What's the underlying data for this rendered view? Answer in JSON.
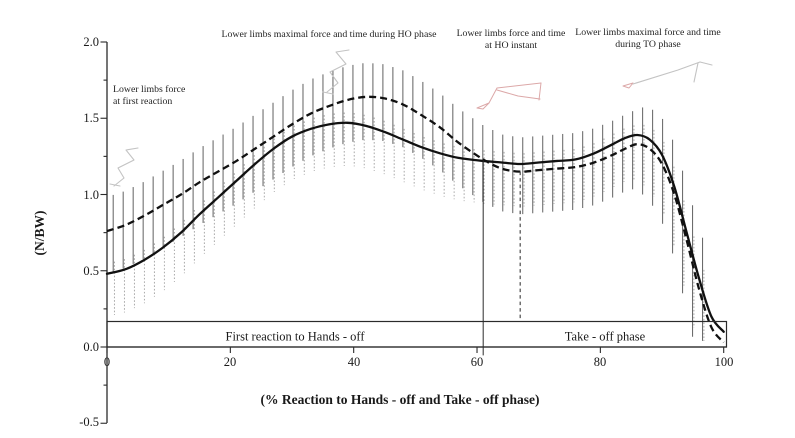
{
  "chart_data": {
    "type": "line",
    "title": "",
    "xlabel": "(% Reaction to Hands - off  and  Take - off phase)",
    "ylabel": "(N/BW)",
    "xlim": [
      0,
      100
    ],
    "ylim": [
      -0.5,
      2.0
    ],
    "grid": false,
    "x_ticks": [
      0,
      20,
      40,
      60,
      80,
      100
    ],
    "x_tick_labels": [
      "0",
      "20",
      "40",
      "60",
      "80",
      "100"
    ],
    "y_ticks": [
      2.0,
      1.5,
      1.0,
      0.5,
      0.0,
      -0.5
    ],
    "y_tick_labels": [
      "2.0",
      "1.5",
      "1.0",
      "0.5",
      "0.0",
      "-0.5"
    ],
    "y_minor_ticks": [
      1.75,
      1.25,
      0.75,
      0.25,
      -0.25
    ],
    "series": [
      {
        "name": "lower-limbs-force-mean-solid",
        "style": "solid",
        "points": [
          [
            0,
            0.48
          ],
          [
            3,
            0.51
          ],
          [
            6,
            0.57
          ],
          [
            9,
            0.65
          ],
          [
            12,
            0.75
          ],
          [
            15,
            0.87
          ],
          [
            18,
            0.98
          ],
          [
            21,
            1.09
          ],
          [
            24,
            1.2
          ],
          [
            27,
            1.3
          ],
          [
            30,
            1.38
          ],
          [
            33,
            1.43
          ],
          [
            36,
            1.46
          ],
          [
            39,
            1.47
          ],
          [
            42,
            1.45
          ],
          [
            45,
            1.41
          ],
          [
            48,
            1.36
          ],
          [
            51,
            1.31
          ],
          [
            54,
            1.27
          ],
          [
            57,
            1.24
          ],
          [
            61,
            1.22
          ],
          [
            64,
            1.21
          ],
          [
            67,
            1.2
          ],
          [
            70,
            1.21
          ],
          [
            73,
            1.22
          ],
          [
            76,
            1.23
          ],
          [
            79,
            1.27
          ],
          [
            82,
            1.33
          ],
          [
            84,
            1.37
          ],
          [
            86,
            1.39
          ],
          [
            88,
            1.36
          ],
          [
            90,
            1.26
          ],
          [
            92,
            1.05
          ],
          [
            94,
            0.75
          ],
          [
            96,
            0.45
          ],
          [
            98,
            0.2
          ],
          [
            100,
            0.1
          ]
        ]
      },
      {
        "name": "lower-limbs-force-mean-dashed",
        "style": "dashed",
        "points": [
          [
            0,
            0.76
          ],
          [
            3,
            0.8
          ],
          [
            6,
            0.86
          ],
          [
            9,
            0.93
          ],
          [
            12,
            1.0
          ],
          [
            15,
            1.08
          ],
          [
            18,
            1.15
          ],
          [
            21,
            1.22
          ],
          [
            24,
            1.3
          ],
          [
            27,
            1.38
          ],
          [
            30,
            1.46
          ],
          [
            33,
            1.53
          ],
          [
            36,
            1.58
          ],
          [
            39,
            1.62
          ],
          [
            42,
            1.64
          ],
          [
            45,
            1.63
          ],
          [
            48,
            1.59
          ],
          [
            51,
            1.52
          ],
          [
            54,
            1.44
          ],
          [
            57,
            1.34
          ],
          [
            61,
            1.23
          ],
          [
            64,
            1.17
          ],
          [
            67,
            1.15
          ],
          [
            70,
            1.16
          ],
          [
            73,
            1.17
          ],
          [
            76,
            1.18
          ],
          [
            79,
            1.21
          ],
          [
            82,
            1.26
          ],
          [
            84,
            1.3
          ],
          [
            86,
            1.33
          ],
          [
            88,
            1.3
          ],
          [
            90,
            1.2
          ],
          [
            92,
            1.0
          ],
          [
            94,
            0.7
          ],
          [
            96,
            0.38
          ],
          [
            98,
            0.13
          ],
          [
            100,
            0.03
          ]
        ]
      }
    ],
    "error_bars": {
      "start": 1.0,
      "end": 98.2,
      "step": 1.62,
      "dark_sd": 0.28,
      "light_sd": 0.28,
      "grow_from": 85,
      "growth": 0.02
    },
    "markers": [
      {
        "name": "ho-instant-line",
        "x": 61,
        "v_top": 1.225,
        "v_bottom": -0.055,
        "style": "solid"
      },
      {
        "name": "ho-phase-end-line",
        "x": 67,
        "v_top": 1.15,
        "v_bottom": 0.165,
        "style": "dashed"
      }
    ],
    "annotations": [
      {
        "id": "first-reaction",
        "lines": [
          "Lower limbs force",
          "at first reaction"
        ]
      },
      {
        "id": "ho-phase-max",
        "lines": [
          "Lower limbs maximal force and time during HO phase"
        ]
      },
      {
        "id": "ho-instant",
        "lines": [
          "Lower limbs force and time",
          "at HO instant"
        ]
      },
      {
        "id": "to-phase-max",
        "lines": [
          "Lower limbs maximal  force and time",
          "during TO phase"
        ]
      }
    ],
    "phase_labels": [
      "First reaction to Hands - off",
      "Take - off phase"
    ]
  }
}
